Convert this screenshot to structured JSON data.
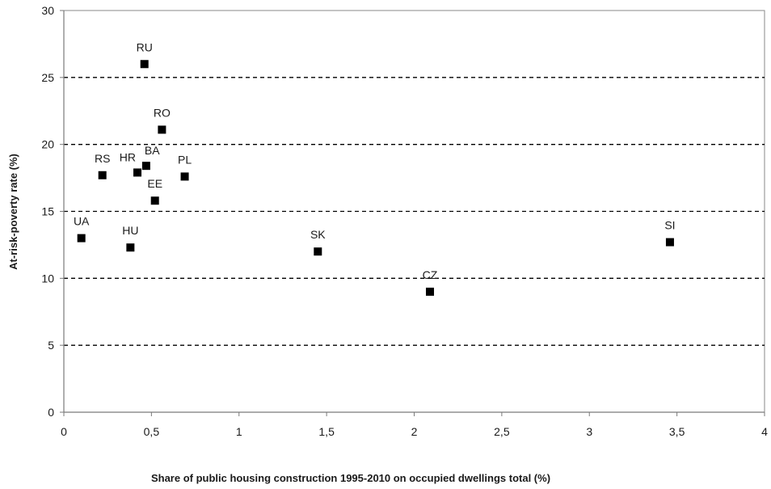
{
  "chart_data": {
    "type": "scatter",
    "title": "",
    "xlabel": "Share of public housing construction  1995-2010 on occupied  dwellings total (%)",
    "ylabel": "At-risk-poverty rate (%)",
    "xlim": [
      0,
      4
    ],
    "ylim": [
      0,
      30
    ],
    "x_ticks": [
      0,
      0.5,
      1,
      1.5,
      2,
      2.5,
      3,
      3.5,
      4
    ],
    "x_tick_labels": [
      "0",
      "0,5",
      "1",
      "1,5",
      "2",
      "2,5",
      "3",
      "3,5",
      "4"
    ],
    "y_ticks": [
      0,
      5,
      10,
      15,
      20,
      25,
      30
    ],
    "y_tick_labels": [
      "0",
      "5",
      "10",
      "15",
      "20",
      "25",
      "30"
    ],
    "grid": "horizontal-dashed",
    "legend": "none",
    "points": [
      {
        "label": "RU",
        "x": 0.46,
        "y": 26.0,
        "label_pos": "above"
      },
      {
        "label": "RO",
        "x": 0.56,
        "y": 21.1,
        "label_pos": "above"
      },
      {
        "label": "RS",
        "x": 0.22,
        "y": 17.7,
        "label_pos": "above"
      },
      {
        "label": "HR",
        "x": 0.42,
        "y": 17.9,
        "label_pos": "above-left"
      },
      {
        "label": "BA",
        "x": 0.47,
        "y": 18.4,
        "label_pos": "above-right"
      },
      {
        "label": "PL",
        "x": 0.69,
        "y": 17.6,
        "label_pos": "above"
      },
      {
        "label": "EE",
        "x": 0.52,
        "y": 15.8,
        "label_pos": "above"
      },
      {
        "label": "UA",
        "x": 0.1,
        "y": 13.0,
        "label_pos": "above"
      },
      {
        "label": "HU",
        "x": 0.38,
        "y": 12.3,
        "label_pos": "above"
      },
      {
        "label": "SK",
        "x": 1.45,
        "y": 12.0,
        "label_pos": "above"
      },
      {
        "label": "CZ",
        "x": 2.09,
        "y": 9.0,
        "label_pos": "above"
      },
      {
        "label": "SI",
        "x": 3.46,
        "y": 12.7,
        "label_pos": "above"
      }
    ],
    "marker": "square",
    "marker_color": "#000000"
  }
}
